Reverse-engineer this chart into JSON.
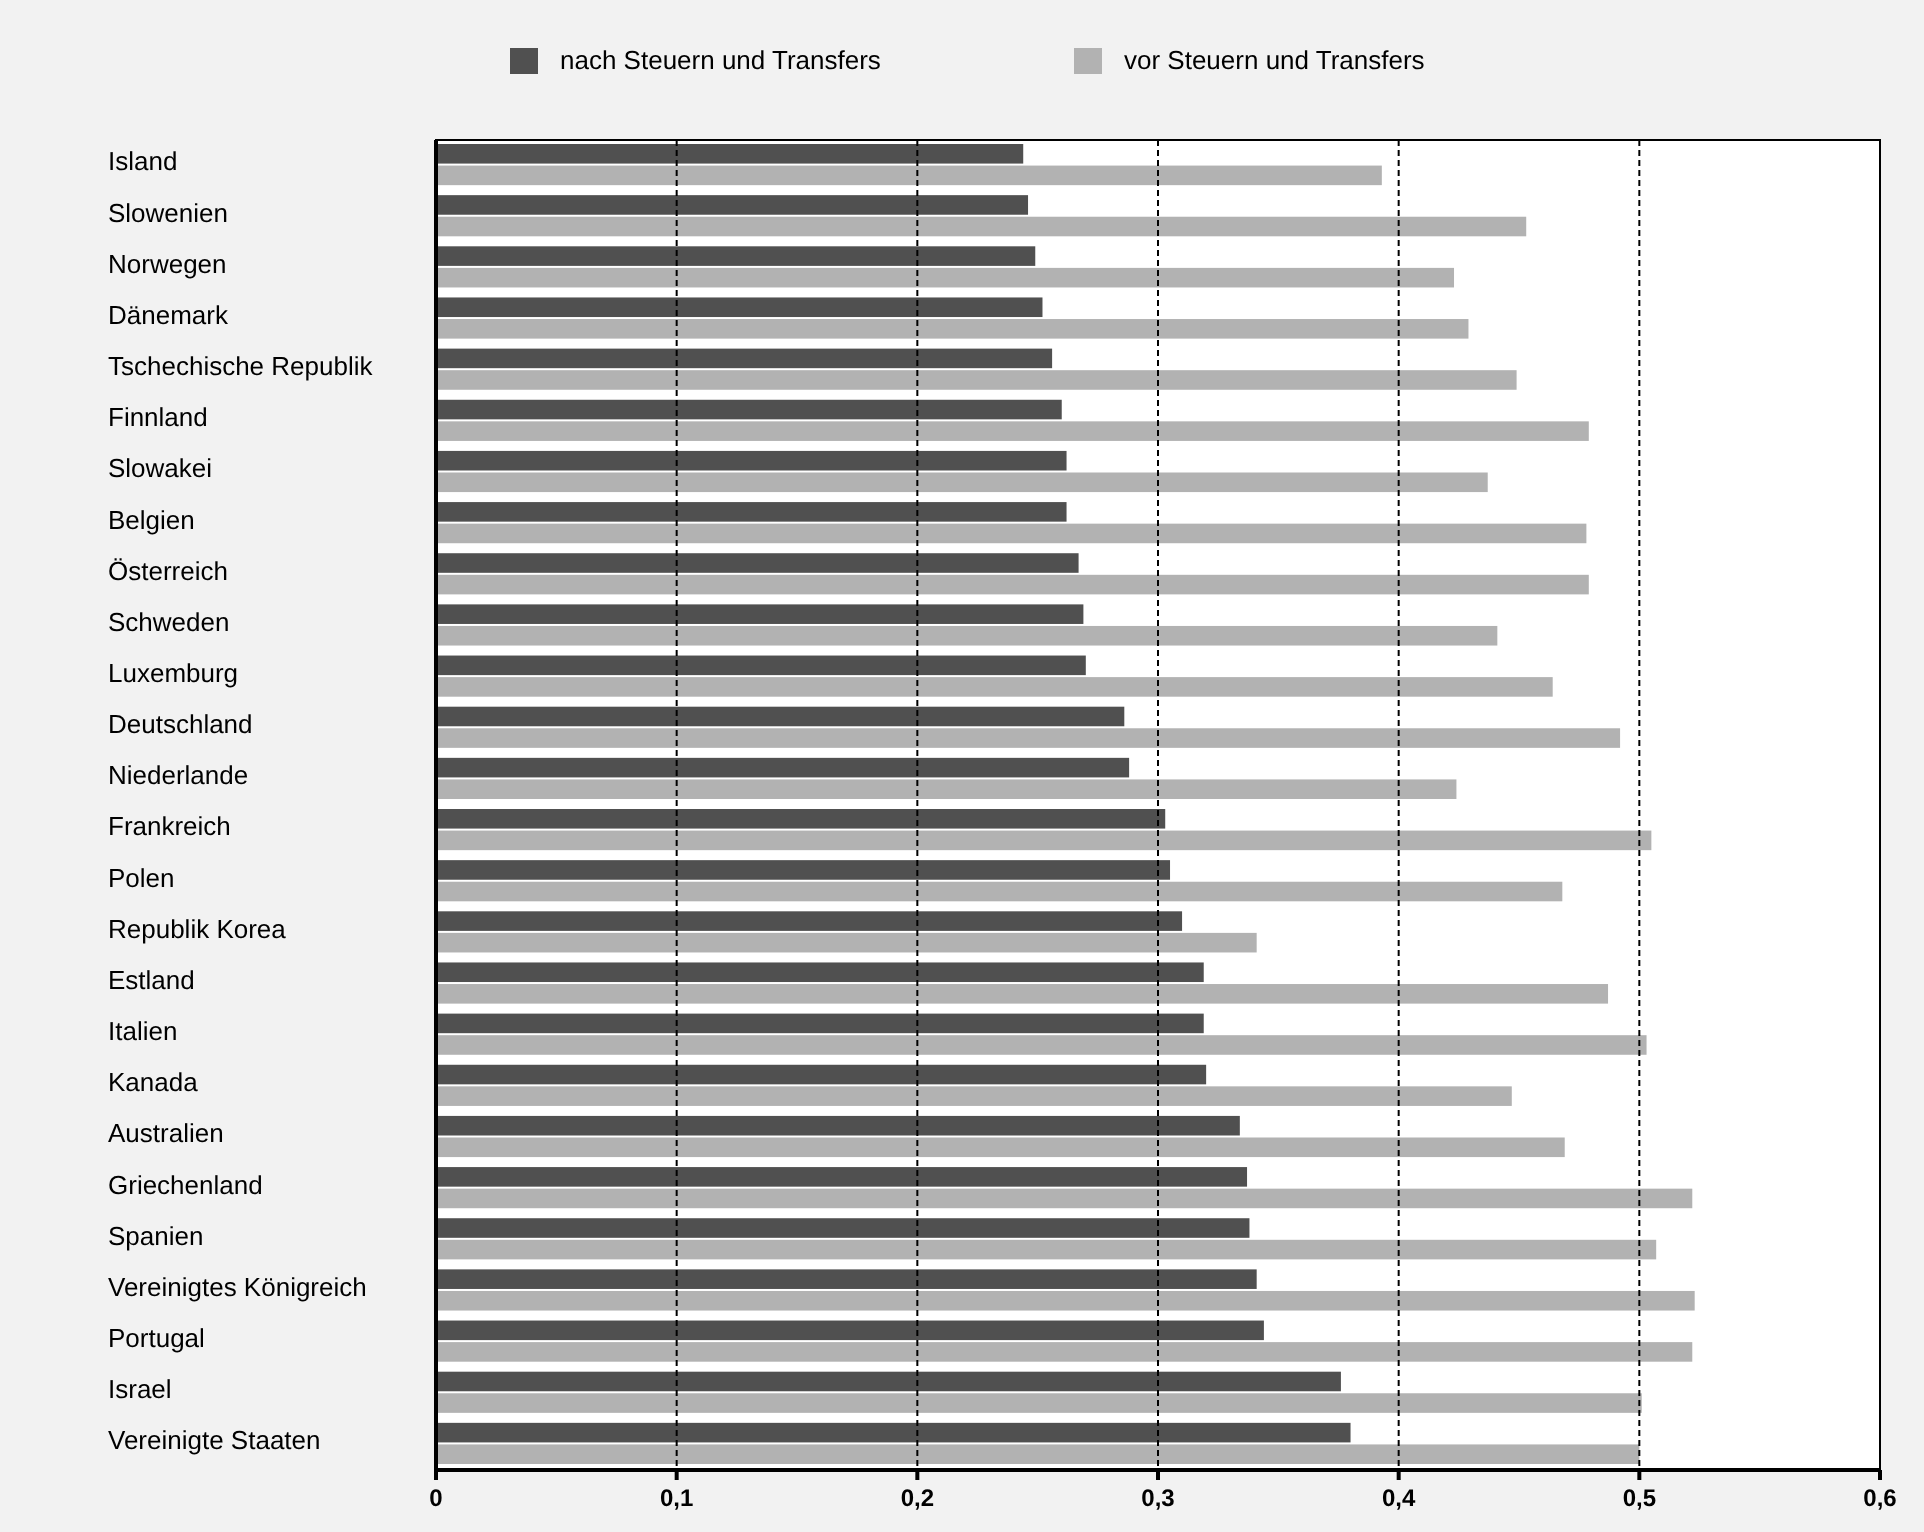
{
  "chart_data": {
    "type": "bar",
    "orientation": "horizontal",
    "categories": [
      "Island",
      "Slowenien",
      "Norwegen",
      "Dänemark",
      "Tschechische Republik",
      "Finnland",
      "Slowakei",
      "Belgien",
      "Österreich",
      "Schweden",
      "Luxemburg",
      "Deutschland",
      "Niederlande",
      "Frankreich",
      "Polen",
      "Republik Korea",
      "Estland",
      "Italien",
      "Kanada",
      "Australien",
      "Griechenland",
      "Spanien",
      "Vereinigtes Königreich",
      "Portugal",
      "Israel",
      "Vereinigte Staaten"
    ],
    "series": [
      {
        "name": "nach Steuern und Transfers",
        "color": "#505050",
        "values": [
          0.244,
          0.246,
          0.249,
          0.252,
          0.256,
          0.26,
          0.262,
          0.262,
          0.267,
          0.269,
          0.27,
          0.286,
          0.288,
          0.303,
          0.305,
          0.31,
          0.319,
          0.319,
          0.32,
          0.334,
          0.337,
          0.338,
          0.341,
          0.344,
          0.376,
          0.38
        ]
      },
      {
        "name": "vor Steuern und Transfers",
        "color": "#b2b2b2",
        "values": [
          0.393,
          0.453,
          0.423,
          0.429,
          0.449,
          0.479,
          0.437,
          0.478,
          0.479,
          0.441,
          0.464,
          0.492,
          0.424,
          0.505,
          0.468,
          0.341,
          0.487,
          0.503,
          0.447,
          0.469,
          0.522,
          0.507,
          0.523,
          0.522,
          0.501,
          0.5
        ]
      }
    ],
    "xlim": [
      0,
      0.6
    ],
    "xticks": [
      0,
      {
        "value": 0.1,
        "label": "0,1"
      },
      {
        "value": 0.2,
        "label": "0,2"
      },
      {
        "value": 0.3,
        "label": "0,3"
      },
      {
        "value": 0.4,
        "label": "0,4"
      },
      {
        "value": 0.5,
        "label": "0,5"
      },
      {
        "value": 0.6,
        "label": "0,6"
      }
    ],
    "grid": "x",
    "legend": "top"
  }
}
